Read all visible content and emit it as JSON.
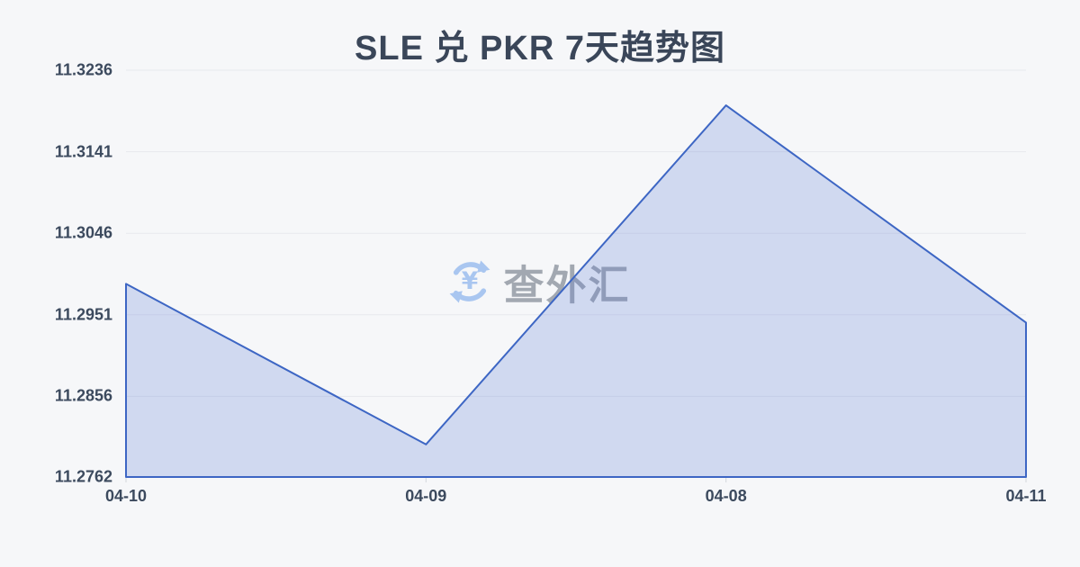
{
  "page": {
    "background": "#f6f7f9",
    "text_color": "#3c4a5e"
  },
  "chart_data": {
    "type": "area",
    "title": "SLE 兑 PKR 7天趋势图",
    "categories": [
      "04-10",
      "04-09",
      "04-08",
      "04-11"
    ],
    "values": [
      11.2987,
      11.28,
      11.3195,
      11.2942
    ],
    "yticks": [
      11.3236,
      11.3141,
      11.3046,
      11.2951,
      11.2856,
      11.2762
    ],
    "ytick_labels": [
      "11.3236",
      "11.3141",
      "11.3046",
      "11.2951",
      "11.2856",
      "11.2762"
    ],
    "ylim": [
      11.2762,
      11.3236
    ],
    "xlabel": "",
    "ylabel": "",
    "grid": "horizontal",
    "legend": "none",
    "line_color": "#3d66c4",
    "fill_color": "rgba(87,122,213,0.24)",
    "grid_color": "#e7e9ed",
    "tick_color": "#d4d7dc"
  },
  "watermark": {
    "text": "查外汇",
    "icon": "yuan-currency-exchange-icon",
    "icon_color": "#a9c6f0",
    "text_color": "#a2a8b1"
  }
}
